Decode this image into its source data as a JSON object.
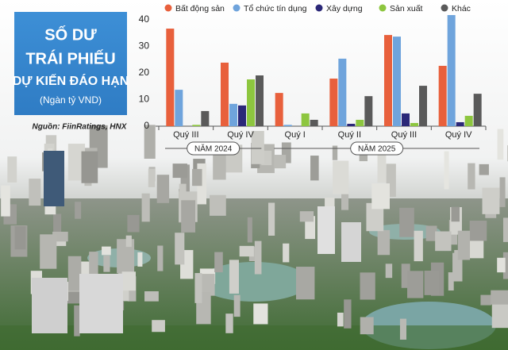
{
  "chart_data": {
    "type": "bar",
    "title": [
      "SỐ DƯ",
      "TRÁI PHIẾU",
      "DỰ KIẾN ĐÁO HẠN"
    ],
    "subtitle": "(Ngàn tỷ VND)",
    "source": "Nguồn: FiinRatings, HNX",
    "annotations": [
      "NĂM 2024",
      "NĂM 2025"
    ],
    "categories": [
      "Quý III",
      "Quý IV",
      "Quý I",
      "Quý II",
      "Quý III",
      "Quý IV"
    ],
    "series": [
      {
        "name": "Bất động sản",
        "color": "#e8603c",
        "values": [
          36.7,
          23.9,
          12.5,
          17.9,
          34.3,
          22.7
        ]
      },
      {
        "name": "Tổ chức tín dụng",
        "color": "#6fa4dc",
        "values": [
          13.7,
          8.4,
          0.5,
          25.4,
          33.7,
          41.8
        ]
      },
      {
        "name": "Xây dựng",
        "color": "#2b2878",
        "values": [
          0,
          7.8,
          0,
          0.9,
          4.8,
          1.5
        ]
      },
      {
        "name": "Sản xuất",
        "color": "#8dc63f",
        "values": [
          0.5,
          17.6,
          4.8,
          2.4,
          1.2,
          3.9
        ]
      },
      {
        "name": "Khác",
        "color": "#5a5a5a",
        "values": [
          5.7,
          19.1,
          2.4,
          11.3,
          15.2,
          12.2
        ]
      }
    ],
    "ylim": [
      0,
      42
    ],
    "yticks": [
      0,
      10,
      20,
      30,
      40
    ],
    "grid": false,
    "legend": "top"
  }
}
